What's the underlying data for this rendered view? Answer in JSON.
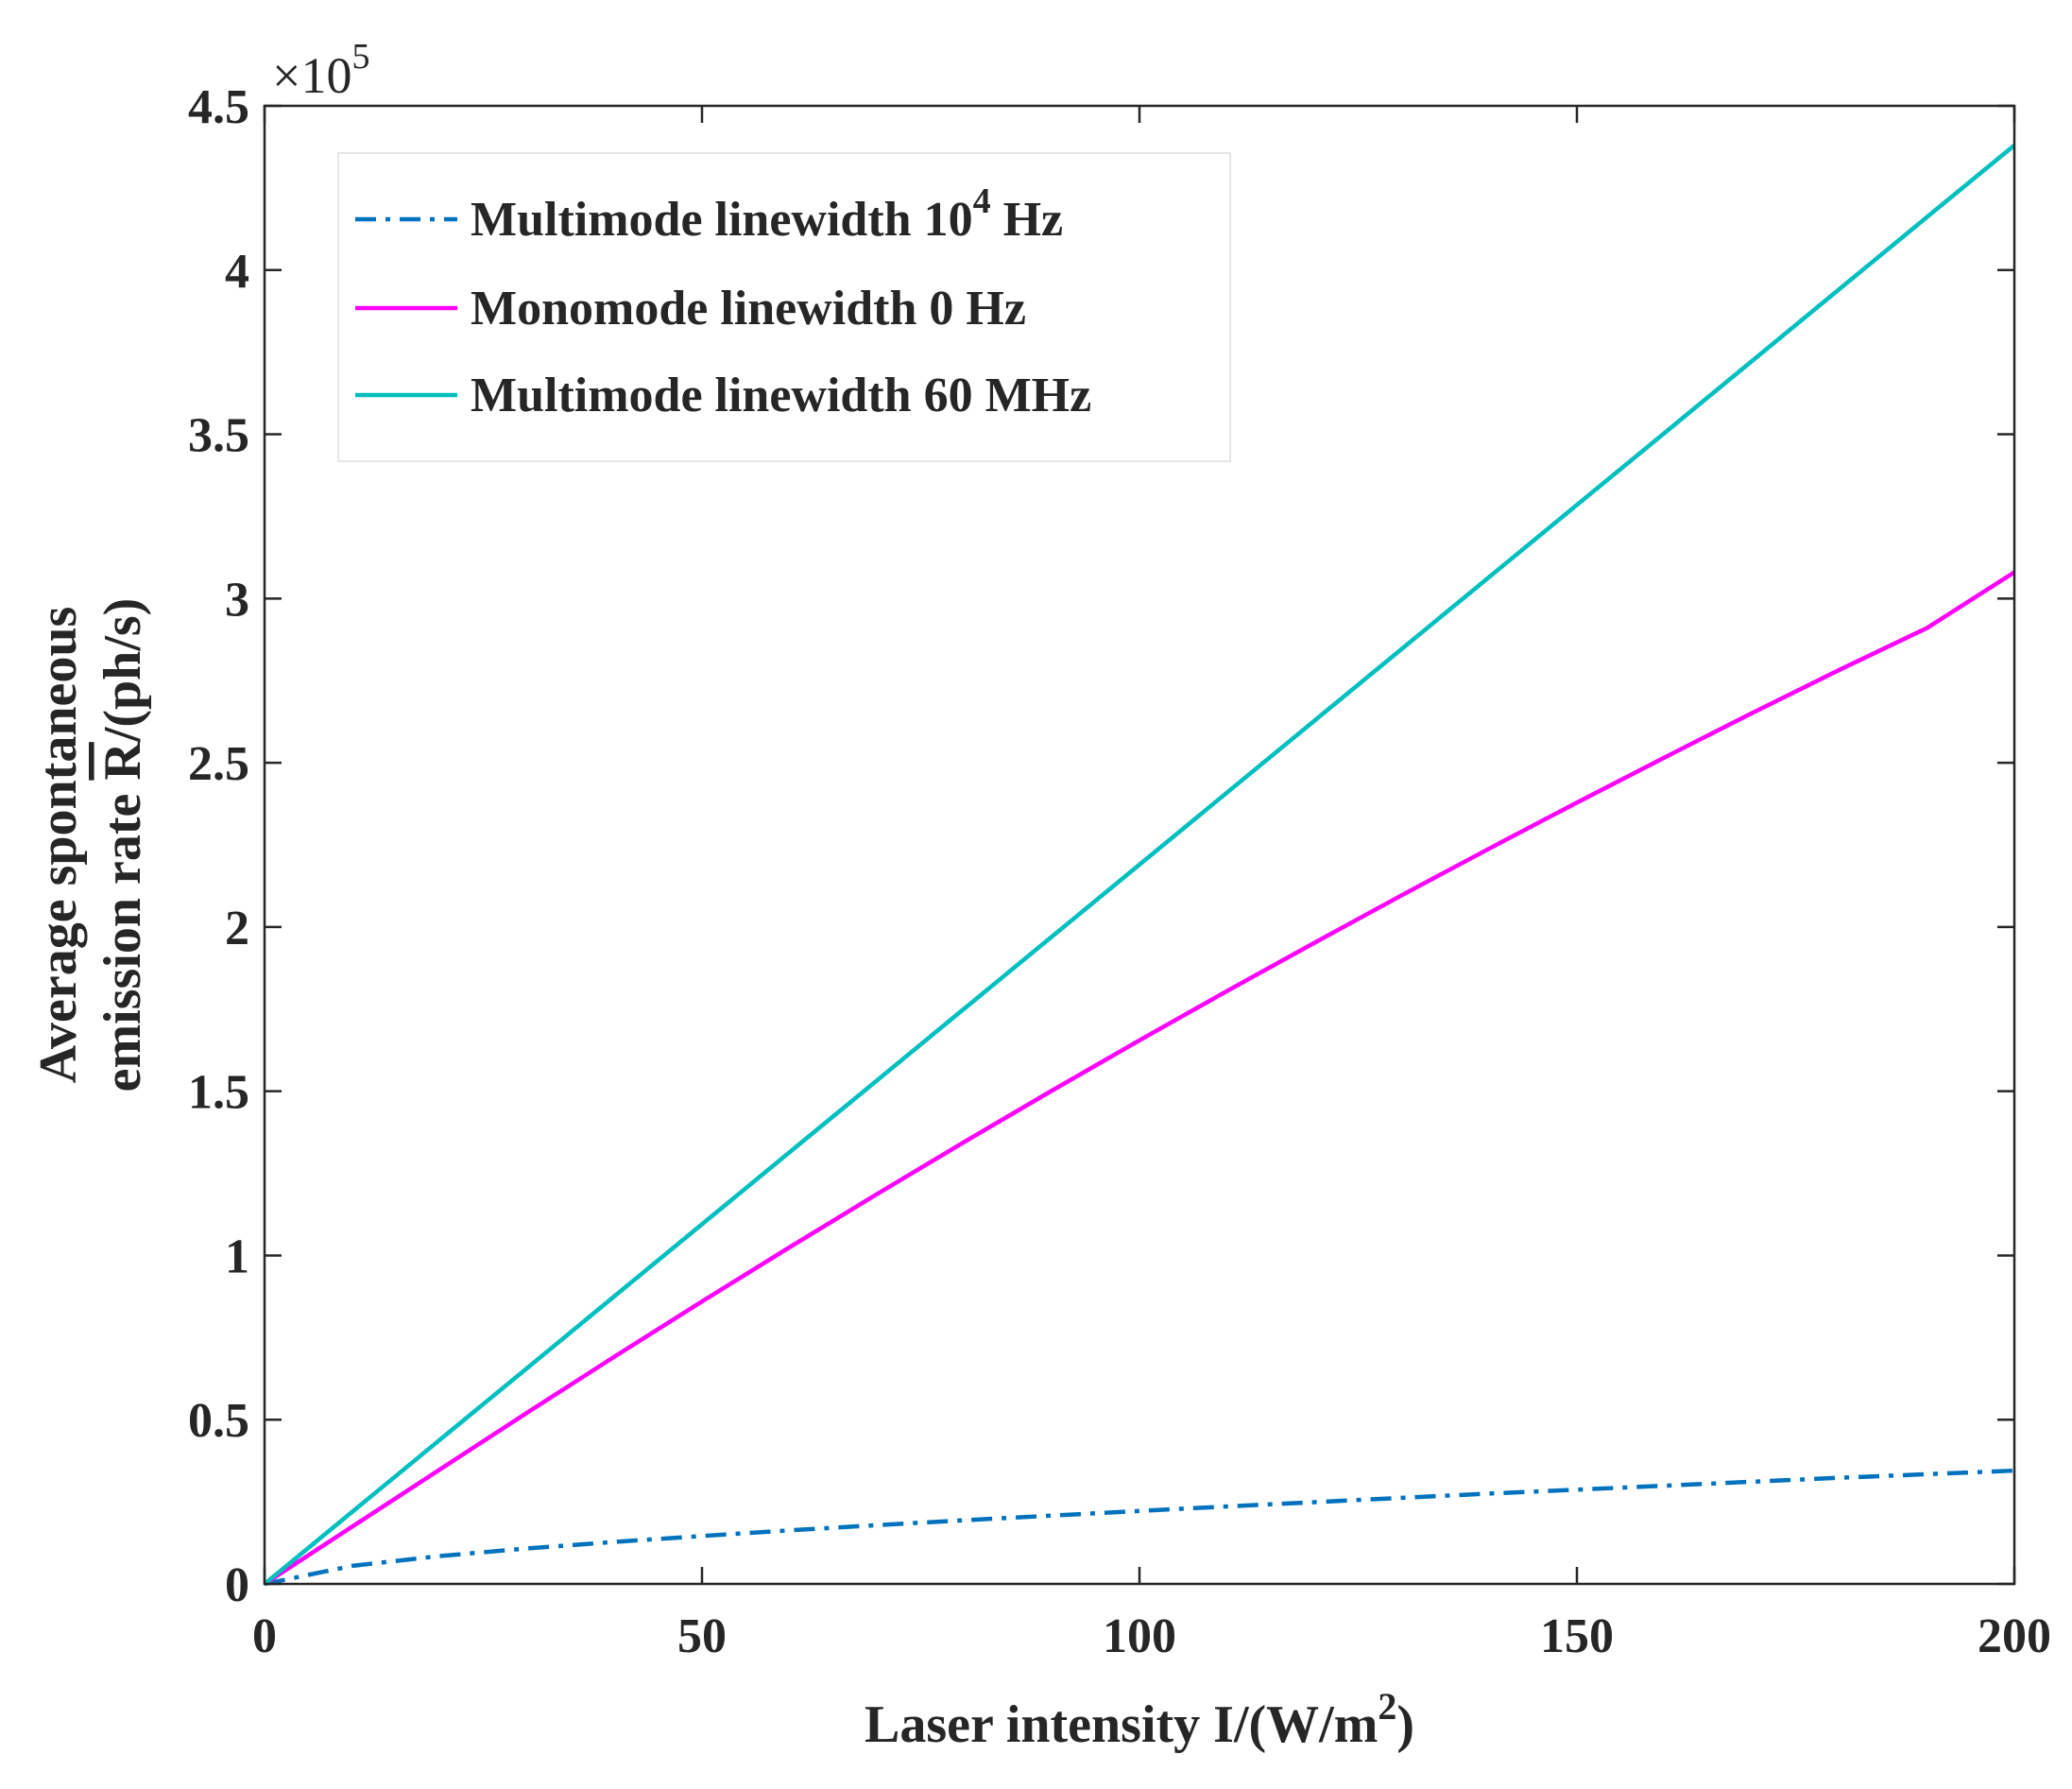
{
  "chart_data": {
    "type": "line",
    "title": "",
    "xlabel": "Laser intensity I/(W/m",
    "xlabel_sup": "2",
    "xlabel_end": ")",
    "ylabel_line1": "Average spontaneous",
    "ylabel_line2_prefix": "emission rate ",
    "ylabel_line2_symbol": "R",
    "ylabel_line2_suffix": "/(ph/s)",
    "y_exponent_prefix": "×10",
    "y_exponent_power": "5",
    "xlim": [
      0,
      200
    ],
    "ylim": [
      0,
      4.5
    ],
    "xticks": [
      0,
      50,
      100,
      150,
      200
    ],
    "xtick_labels": [
      "0",
      "50",
      "100",
      "150",
      "200"
    ],
    "yticks": [
      0,
      0.5,
      1,
      1.5,
      2,
      2.5,
      3,
      3.5,
      4,
      4.5
    ],
    "ytick_labels": [
      "0",
      "0.5",
      "1",
      "1.5",
      "2",
      "2.5",
      "3",
      "3.5",
      "4",
      "4.5"
    ],
    "grid": false,
    "legend_position": "top-left",
    "x": [
      0,
      10,
      20,
      30,
      40,
      50,
      60,
      70,
      80,
      90,
      100,
      110,
      120,
      130,
      140,
      150,
      160,
      170,
      180,
      190,
      200
    ],
    "series": [
      {
        "name": "Multimode linewidth 10",
        "name_sup": "4",
        "name_suffix": " Hz",
        "color": "#0072BD",
        "style": "dashdot",
        "values": [
          0,
          0.055,
          0.085,
          0.108,
          0.128,
          0.146,
          0.163,
          0.179,
          0.194,
          0.208,
          0.222,
          0.236,
          0.249,
          0.262,
          0.275,
          0.287,
          0.299,
          0.311,
          0.323,
          0.334,
          0.345
        ]
      },
      {
        "name": "Monomode linewidth 0 Hz",
        "name_sup": "",
        "name_suffix": "",
        "color": "#FF00FF",
        "style": "solid",
        "values": [
          0,
          0.174,
          0.348,
          0.521,
          0.692,
          0.86,
          1.025,
          1.187,
          1.346,
          1.502,
          1.655,
          1.805,
          1.952,
          2.097,
          2.239,
          2.379,
          2.516,
          2.651,
          2.783,
          2.91,
          3.08
        ]
      },
      {
        "name": "Multimode linewidth 60 MHz",
        "name_sup": "",
        "name_suffix": "",
        "color": "#00BFBF",
        "style": "solid",
        "values": [
          0,
          0.219,
          0.438,
          0.657,
          0.876,
          1.095,
          1.314,
          1.533,
          1.752,
          1.971,
          2.19,
          2.409,
          2.628,
          2.847,
          3.066,
          3.285,
          3.504,
          3.723,
          3.942,
          4.161,
          4.38
        ]
      }
    ]
  }
}
